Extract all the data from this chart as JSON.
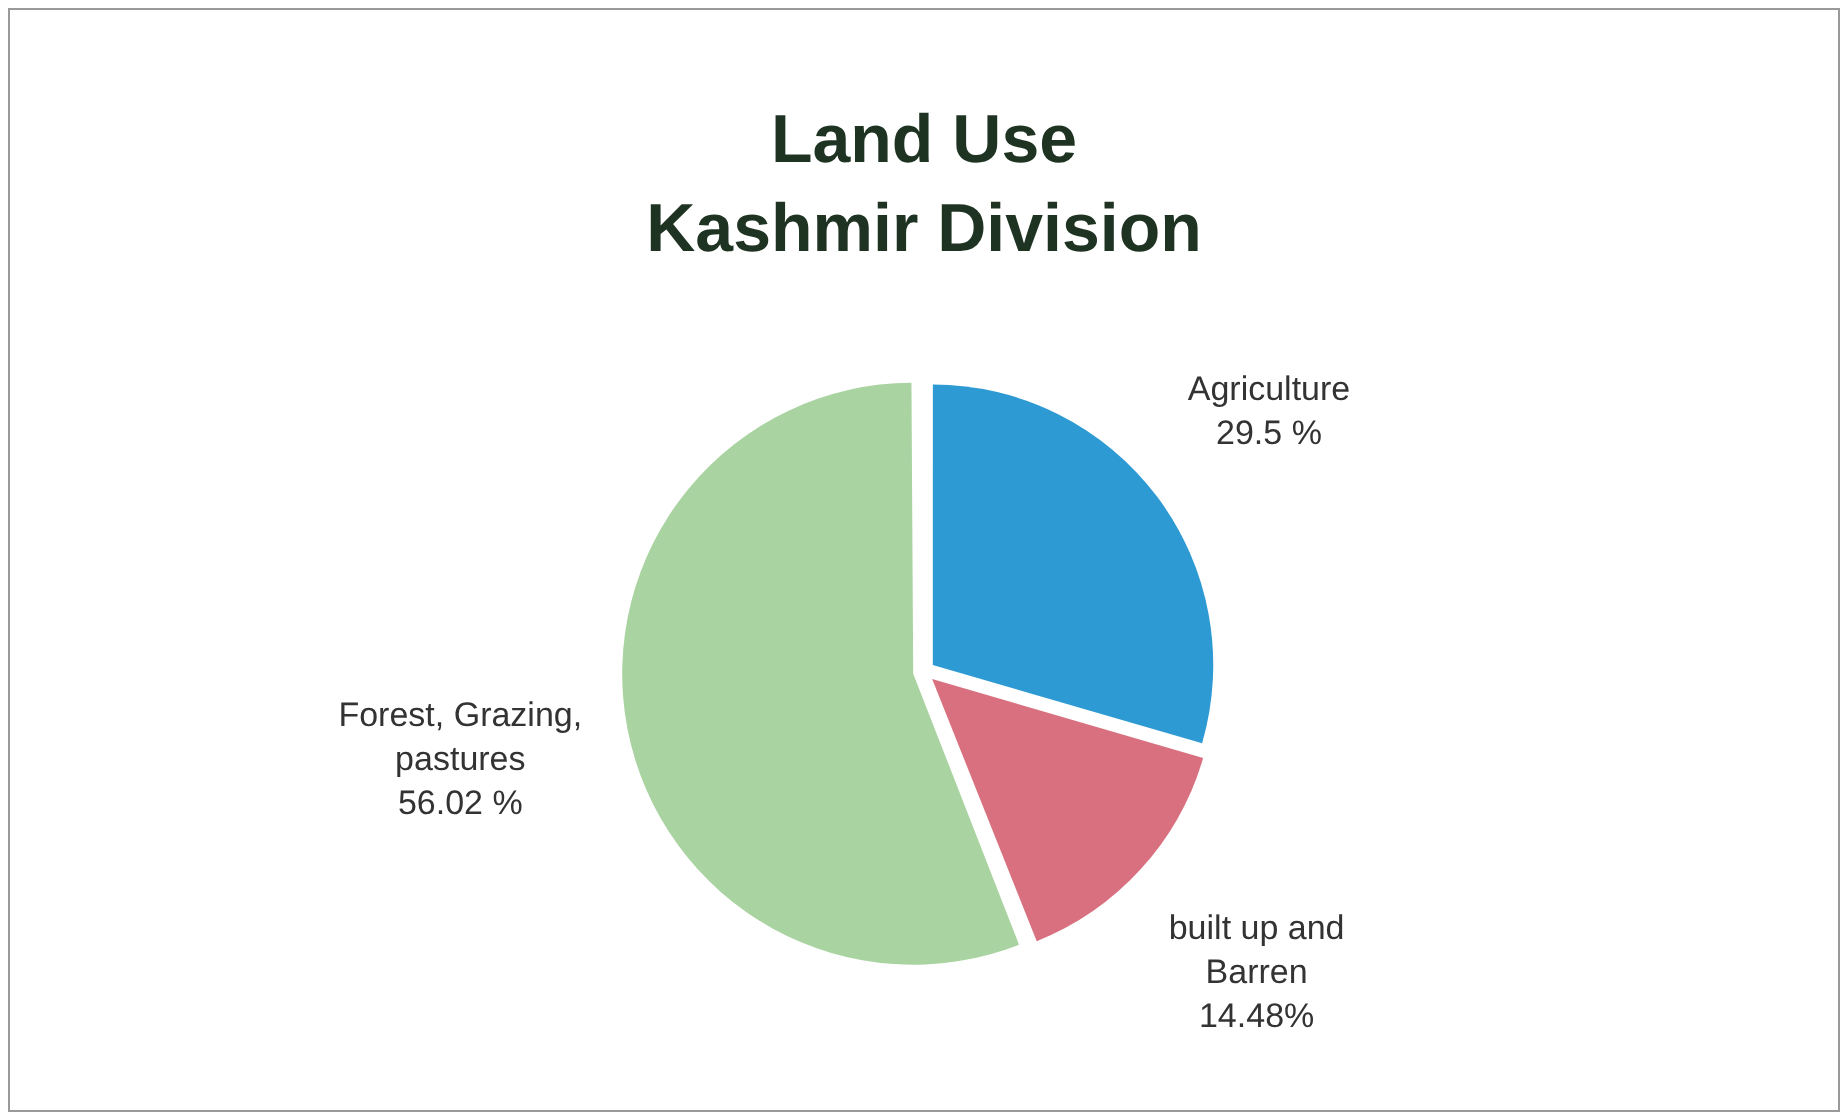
{
  "chart_data": {
    "type": "pie",
    "title": "Land Use",
    "subtitle": "Kashmir Division",
    "categories": [
      "Agriculture",
      "built up and Barren",
      "Forest, Grazing, pastures"
    ],
    "values": [
      29.5,
      14.48,
      56.02
    ],
    "value_labels": [
      "29.5 %",
      "14.48%",
      "56.02 %"
    ],
    "colors": [
      "#2e9ad3",
      "#d9707f",
      "#a9d3a0"
    ],
    "legend": false
  }
}
